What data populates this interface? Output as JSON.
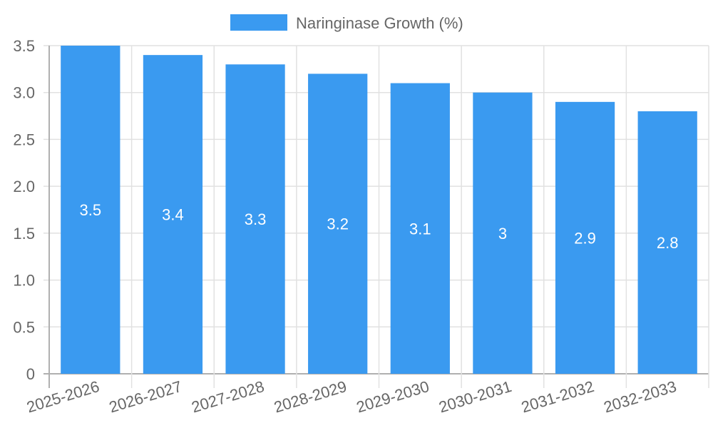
{
  "chart_data": {
    "type": "bar",
    "title": "",
    "xlabel": "",
    "ylabel": "",
    "categories": [
      "2025-2026",
      "2026-2027",
      "2027-2028",
      "2028-2029",
      "2029-2030",
      "2030-2031",
      "2031-2032",
      "2032-2033"
    ],
    "series": [
      {
        "name": "Naringinase Growth (%)",
        "values": [
          3.5,
          3.4,
          3.3,
          3.2,
          3.1,
          3,
          2.9,
          2.8
        ],
        "color": "#3a9af0"
      }
    ],
    "data_labels": [
      "3.5",
      "3.4",
      "3.3",
      "3.2",
      "3.1",
      "3",
      "2.9",
      "2.8"
    ],
    "ylim": [
      0,
      3.5
    ],
    "yticks": [
      0,
      0.5,
      1.0,
      1.5,
      2.0,
      2.5,
      3.0,
      3.5
    ],
    "ytick_labels": [
      "0",
      "0.5",
      "1.0",
      "1.5",
      "2.0",
      "2.5",
      "3.0",
      "3.5"
    ],
    "grid": true,
    "legend_position": "top"
  },
  "legend": {
    "label": "Naringinase Growth (%)",
    "swatch_color": "#3a9af0"
  }
}
